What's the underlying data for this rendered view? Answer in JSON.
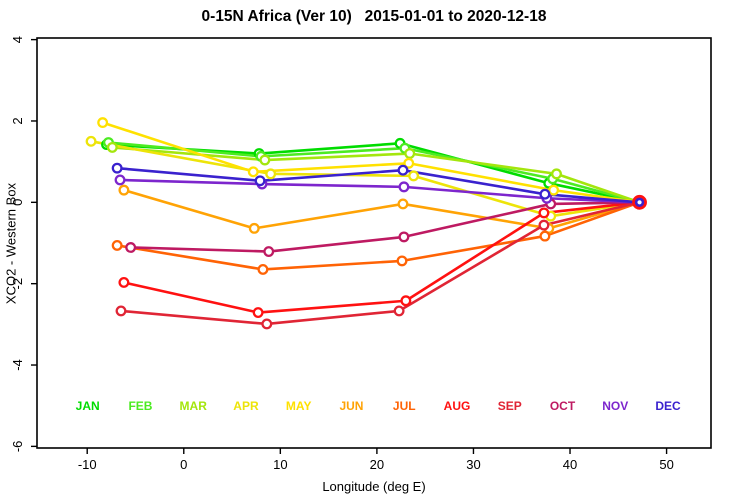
{
  "page": {
    "title": "0-15N Africa (Ver 10)   2015-01-01 to 2020-12-18"
  },
  "chart_data": {
    "type": "line",
    "title": "0-15N Africa (Ver 10)   2015-01-01 to 2020-12-18",
    "xlabel": "Longitude (deg E)",
    "ylabel": "XCO2 - Western Box",
    "xlim": [
      -15.2,
      54.6
    ],
    "ylim": [
      -6.04,
      4.04
    ],
    "xticks": [
      -10,
      0,
      10,
      20,
      30,
      40,
      50
    ],
    "yticks": [
      4,
      2,
      0,
      -2,
      -4,
      -6
    ],
    "grid": false,
    "legend_position": "bottom-inside",
    "axis_color": "#000000",
    "background": "#FFFFFF",
    "series": [
      {
        "name": "JAN",
        "color": "#00DC00",
        "points": [
          [
            -8.0,
            1.42
          ],
          [
            7.8,
            1.2
          ],
          [
            22.4,
            1.45
          ],
          [
            37.8,
            0.47
          ],
          [
            47.2,
            0.0
          ]
        ]
      },
      {
        "name": "FEB",
        "color": "#4CEB22",
        "points": [
          [
            -7.8,
            1.47
          ],
          [
            8.0,
            1.13
          ],
          [
            22.9,
            1.33
          ],
          [
            38.2,
            0.58
          ],
          [
            47.2,
            0.0
          ]
        ]
      },
      {
        "name": "MAR",
        "color": "#A4E60D",
        "points": [
          [
            -7.4,
            1.35
          ],
          [
            8.4,
            1.04
          ],
          [
            23.4,
            1.2
          ],
          [
            38.6,
            0.7
          ],
          [
            47.2,
            0.0
          ]
        ]
      },
      {
        "name": "APR",
        "color": "#EDE409",
        "points": [
          [
            -9.6,
            1.5
          ],
          [
            9.0,
            0.7
          ],
          [
            23.8,
            0.65
          ],
          [
            38.0,
            -0.34
          ],
          [
            47.2,
            0.0
          ]
        ]
      },
      {
        "name": "MAY",
        "color": "#FFE100",
        "points": [
          [
            -8.4,
            1.96
          ],
          [
            7.2,
            0.75
          ],
          [
            23.3,
            0.96
          ],
          [
            38.3,
            0.3
          ],
          [
            47.2,
            0.0
          ]
        ]
      },
      {
        "name": "JUN",
        "color": "#FFA305",
        "points": [
          [
            -6.2,
            0.3
          ],
          [
            7.3,
            -0.64
          ],
          [
            22.7,
            -0.04
          ],
          [
            37.8,
            -0.64
          ],
          [
            47.2,
            0.0
          ]
        ]
      },
      {
        "name": "JUL",
        "color": "#FF6305",
        "points": [
          [
            -6.9,
            -1.06
          ],
          [
            8.2,
            -1.65
          ],
          [
            22.6,
            -1.44
          ],
          [
            37.4,
            -0.83
          ],
          [
            47.2,
            0.0
          ]
        ]
      },
      {
        "name": "AUG",
        "color": "#FF1111",
        "points": [
          [
            -6.2,
            -1.97
          ],
          [
            7.7,
            -2.71
          ],
          [
            23.0,
            -2.42
          ],
          [
            37.3,
            -0.26
          ],
          [
            47.2,
            0.0
          ]
        ]
      },
      {
        "name": "SEP",
        "color": "#E02535",
        "points": [
          [
            -6.5,
            -2.67
          ],
          [
            8.6,
            -2.99
          ],
          [
            22.3,
            -2.67
          ],
          [
            37.3,
            -0.56
          ],
          [
            47.2,
            0.0
          ]
        ]
      },
      {
        "name": "OCT",
        "color": "#BE1A62",
        "points": [
          [
            -5.5,
            -1.11
          ],
          [
            8.8,
            -1.21
          ],
          [
            22.8,
            -0.85
          ],
          [
            38.0,
            -0.04
          ],
          [
            47.2,
            0.0
          ]
        ]
      },
      {
        "name": "NOV",
        "color": "#7D26CD",
        "points": [
          [
            -6.6,
            0.55
          ],
          [
            8.1,
            0.45
          ],
          [
            22.8,
            0.38
          ],
          [
            37.6,
            0.1
          ],
          [
            47.2,
            0.0
          ]
        ]
      },
      {
        "name": "DEC",
        "color": "#3A22CE",
        "points": [
          [
            -6.9,
            0.84
          ],
          [
            7.9,
            0.53
          ],
          [
            22.7,
            0.79
          ],
          [
            37.4,
            0.2
          ],
          [
            47.2,
            0.0
          ]
        ]
      }
    ],
    "month_legend": {
      "labels": [
        "JAN",
        "FEB",
        "MAR",
        "APR",
        "MAY",
        "JUN",
        "JUL",
        "AUG",
        "SEP",
        "OCT",
        "NOV",
        "DEC"
      ],
      "y_value": -5.1,
      "x_start": -9.95,
      "x_end": 50.15
    },
    "end_marker": {
      "x": 47.2,
      "y": 0.0,
      "outer_color": "#FF1111",
      "inner_color": "#3A22CE"
    }
  }
}
